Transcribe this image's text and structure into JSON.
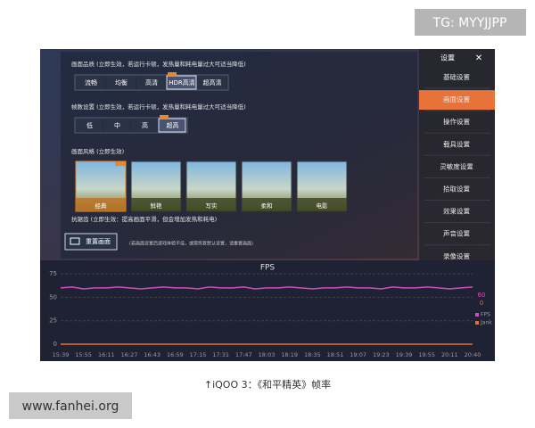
{
  "watermark_top": "TG: MYYJJPP",
  "settings": {
    "quality": {
      "label": "画面品质 (立即生效，若运行卡顿，发热量和耗电量过大可适当降低)",
      "options": [
        "流畅",
        "均衡",
        "高清",
        "HDR高清",
        "超高清"
      ],
      "selected": "HDR高清"
    },
    "fps": {
      "label": "帧数设置 (立即生效，若运行卡顿，发热量和耗电量过大可适当降低)",
      "options": [
        "低",
        "中",
        "高",
        "超高"
      ],
      "selected": "超高"
    },
    "style": {
      "label": "画面风格 (立即生效)",
      "options": [
        "经典",
        "鲜艳",
        "写实",
        "柔和",
        "电影"
      ],
      "selected": "经典"
    },
    "antialias": "抗锯齿 (立即生效：提高画面平滑，但会增加发热和耗电)",
    "reset_button": "重置画面",
    "reset_note": "(若画面设置后游戏体验不佳，或需恢复默认设置，请重置画面)"
  },
  "sidebar": {
    "title": "设置",
    "close": "✕",
    "items": [
      "基础设置",
      "画面设置",
      "操作设置",
      "载具设置",
      "灵敏度设置",
      "拾取设置",
      "效果设置",
      "声音设置",
      "录像设置"
    ],
    "selected": "画面设置"
  },
  "chart_data": {
    "type": "line",
    "title": "FPS",
    "categories": [
      "15:39",
      null,
      "15:55",
      null,
      "16:11",
      null,
      "16:27",
      null,
      "16:43",
      null,
      "16:59",
      null,
      "17:15",
      null,
      "17:31",
      null,
      "17:47",
      null,
      "18:03",
      null,
      "18:19",
      null,
      "18:35",
      null,
      "18:51",
      null,
      "19:07",
      null,
      "19:23",
      null,
      "19:39",
      null,
      "19:55",
      null,
      "20:11",
      null,
      "20:40"
    ],
    "series": [
      {
        "name": "FPS",
        "color": "#d04cc6",
        "current": 60,
        "values": [
          60,
          61,
          59,
          60,
          60,
          61,
          60,
          59,
          60,
          61,
          60,
          60,
          59,
          61,
          60,
          60,
          61,
          59,
          60,
          60,
          61,
          60,
          59,
          60,
          60,
          61,
          60,
          60,
          59,
          61,
          60,
          60,
          61,
          60,
          59,
          60,
          61
        ]
      },
      {
        "name": "Jank",
        "color": "#e8702a",
        "current": 0,
        "values": [
          0,
          0,
          0,
          0,
          0,
          0,
          0,
          0,
          0,
          0,
          0,
          0,
          0,
          0,
          0,
          0,
          0,
          0,
          0,
          0,
          0,
          0,
          0,
          0,
          0,
          0,
          0,
          0,
          0,
          0,
          0,
          0,
          0,
          0,
          0,
          0,
          0
        ]
      }
    ],
    "ylim": [
      0,
      78
    ],
    "yticks": [
      0,
      25,
      50,
      75
    ],
    "grid": true
  },
  "caption": "↑iQOO 3：《和平精英》帧率",
  "watermark_bottom": "www.fanhei.org"
}
